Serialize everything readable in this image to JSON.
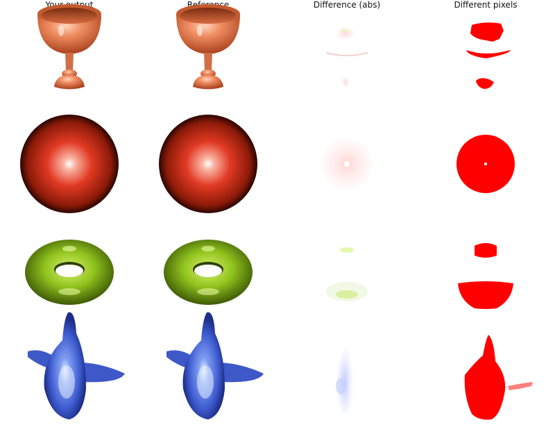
{
  "header": {
    "columns": [
      "Your output",
      "Reference",
      "Difference (abs)",
      "Different pixels"
    ]
  },
  "rows": [
    {
      "object": "goblet",
      "color": "#e8825a",
      "diff_color": "#d22020"
    },
    {
      "object": "sphere",
      "color": "#d93b22",
      "diff_color": "#ff0000"
    },
    {
      "object": "torus",
      "color": "#8cc21e",
      "diff_color": "#ff0000"
    },
    {
      "object": "plane",
      "color": "#4a6ad8",
      "diff_color": "#ff0000"
    }
  ],
  "colors": {
    "background": "#ffffff",
    "goblet": "#e8825a",
    "sphere": "#d93b22",
    "torus": "#8cc21e",
    "plane": "#4a6ad8",
    "diff_red": "#ff0000"
  }
}
